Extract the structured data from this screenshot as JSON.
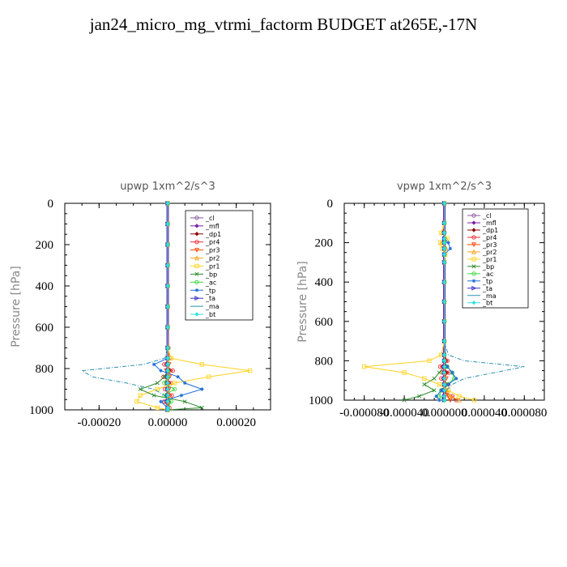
{
  "title": "jan24_micro_mg_vtrmi_factorm  BUDGET at265E,-17N",
  "chart_data": [
    {
      "type": "line",
      "title": "upwp   1xm^2/s^3",
      "xlabel": "",
      "ylabel": "Pressure [hPa]",
      "ylim": [
        0,
        1000
      ],
      "xlim": [
        -0.0003,
        0.0003
      ],
      "xticks": [
        -0.0002,
        0.0,
        0.0002
      ],
      "xtick_labels": [
        "-0.00020",
        "0.00000",
        "0.00020"
      ],
      "yticks": [
        0,
        200,
        400,
        600,
        800,
        1000
      ],
      "ytick_labels": [
        "0",
        "200",
        "400",
        "600",
        "800",
        "1000"
      ],
      "legend_position": "top-right",
      "y": [
        0,
        100,
        200,
        300,
        400,
        500,
        600,
        700,
        750,
        780,
        810,
        840,
        870,
        900,
        930,
        960,
        990,
        1000
      ],
      "series": [
        {
          "name": "_cl",
          "color": "#8a5aa0",
          "values": [
            0,
            0,
            0,
            0,
            0,
            0,
            0,
            0,
            0,
            0,
            0,
            0,
            0,
            0,
            0,
            0,
            0,
            0
          ]
        },
        {
          "name": "_mfl",
          "color": "#7b1fa2",
          "values": [
            0,
            0,
            0,
            0,
            0,
            0,
            0,
            0,
            0,
            0,
            0,
            0,
            0,
            0,
            0,
            0,
            0,
            0
          ]
        },
        {
          "name": "_dp1",
          "color": "#8b0000",
          "values": [
            0,
            0,
            0,
            0,
            0,
            0,
            0,
            0,
            0,
            0,
            5e-06,
            -5e-06,
            5e-06,
            0,
            -3e-06,
            4e-06,
            0,
            0
          ]
        },
        {
          "name": "_pr4",
          "color": "#e8282d",
          "values": [
            0,
            0,
            0,
            0,
            0,
            0,
            0,
            2e-06,
            5e-06,
            -1e-05,
            1.5e-05,
            -1.2e-05,
            1e-05,
            -8e-06,
            1.2e-05,
            -1e-05,
            5e-06,
            0
          ]
        },
        {
          "name": "_pr3",
          "color": "#ff4500",
          "values": [
            0,
            0,
            0,
            0,
            0,
            0,
            0,
            0,
            0,
            4e-06,
            -4e-06,
            6e-06,
            -5e-06,
            4e-06,
            0,
            0,
            0,
            0
          ]
        },
        {
          "name": "_pr2",
          "color": "#ff9f1c",
          "values": [
            0,
            0,
            0,
            0,
            0,
            0,
            0,
            0,
            2e-06,
            0,
            3e-06,
            0,
            -3e-06,
            0,
            2e-06,
            0,
            0,
            0
          ]
        },
        {
          "name": "_pr1",
          "color": "#ffd21f",
          "values": [
            0,
            0,
            0,
            0,
            0,
            0,
            0,
            0,
            1e-05,
            0.0001,
            0.00024,
            0.00012,
            2e-05,
            -3e-05,
            -8e-05,
            -9e-05,
            -3e-05,
            0
          ]
        },
        {
          "name": "_bp",
          "color": "#2e8b2e",
          "values": [
            0,
            0,
            0,
            0,
            0,
            0,
            0,
            0,
            0,
            0,
            0,
            -1e-05,
            -3e-05,
            -8e-05,
            -4e-05,
            5e-05,
            0.0001,
            0
          ]
        },
        {
          "name": "_ac",
          "color": "#3cd63c",
          "values": [
            0,
            0,
            0,
            0,
            0,
            0,
            0,
            0,
            0,
            0,
            0,
            0,
            -1e-05,
            2e-05,
            -1e-05,
            1e-05,
            0,
            0
          ]
        },
        {
          "name": "_tp",
          "color": "#1e70d8",
          "values": [
            0,
            0,
            0,
            0,
            0,
            0,
            0,
            0,
            0,
            -4e-05,
            -2e-05,
            3e-05,
            5e-05,
            0.0001,
            4e-05,
            -2e-05,
            0,
            0
          ]
        },
        {
          "name": "_ta",
          "color": "#3a30c8",
          "values": [
            0,
            0,
            0,
            0,
            0,
            0,
            0,
            0,
            0,
            0,
            0,
            0,
            0,
            0,
            0,
            0,
            0,
            0
          ]
        },
        {
          "name": "_ma",
          "color": "#2a8fb0",
          "values": [
            0,
            0,
            0,
            0,
            0,
            0,
            0,
            0,
            -1e-05,
            -7e-05,
            -0.00025,
            -0.00022,
            -0.00012,
            -4e-05,
            -1e-05,
            0,
            0,
            0
          ]
        },
        {
          "name": "_bt",
          "color": "#33e0e0",
          "values": [
            0,
            0,
            0,
            0,
            0,
            0,
            0,
            0,
            0,
            0,
            0,
            0,
            0,
            0,
            0,
            0,
            0,
            0
          ]
        }
      ]
    },
    {
      "type": "line",
      "title": "vpwp   1xm^2/s^3",
      "xlabel": "",
      "ylabel": "Pressure [hPa]",
      "ylim": [
        0,
        1000
      ],
      "xlim": [
        -0.0001,
        0.0001
      ],
      "xticks": [
        -8e-05,
        -4e-05,
        0.0,
        4e-05,
        8e-05
      ],
      "xtick_labels": [
        "-0.000080",
        "-0.000040",
        "0.000000",
        "0.000040",
        "0.000080"
      ],
      "yticks": [
        0,
        200,
        400,
        600,
        800,
        1000
      ],
      "ytick_labels": [
        "0",
        "200",
        "400",
        "600",
        "800",
        "1000"
      ],
      "legend_position": "top-right",
      "y": [
        0,
        100,
        150,
        180,
        200,
        230,
        260,
        300,
        400,
        500,
        600,
        700,
        770,
        800,
        830,
        860,
        890,
        920,
        950,
        980,
        1000
      ],
      "series": [
        {
          "name": "_cl",
          "color": "#8a5aa0",
          "values": [
            0,
            0,
            0,
            0,
            0,
            0,
            0,
            0,
            0,
            0,
            0,
            0,
            0,
            0,
            0,
            0,
            0,
            0,
            0,
            0,
            0
          ]
        },
        {
          "name": "_mfl",
          "color": "#7b1fa2",
          "values": [
            0,
            0,
            0,
            0,
            0,
            0,
            0,
            0,
            0,
            0,
            0,
            0,
            0,
            0,
            0,
            0,
            0,
            0,
            0,
            0,
            0
          ]
        },
        {
          "name": "_dp1",
          "color": "#8b0000",
          "values": [
            0,
            0,
            0,
            0,
            0,
            0,
            0,
            0,
            0,
            0,
            0,
            0,
            0,
            2e-06,
            -2e-06,
            2e-06,
            0,
            0,
            2e-06,
            0,
            0
          ]
        },
        {
          "name": "_pr4",
          "color": "#e8282d",
          "values": [
            0,
            0,
            0,
            0,
            0,
            0,
            0,
            0,
            0,
            0,
            0,
            0,
            0,
            3e-06,
            -4e-06,
            5e-06,
            -3e-06,
            4e-06,
            -2e-06,
            8e-06,
            1.2e-05
          ]
        },
        {
          "name": "_pr3",
          "color": "#ff4500",
          "values": [
            0,
            0,
            0,
            0,
            0,
            0,
            0,
            0,
            0,
            0,
            0,
            0,
            0,
            0,
            2e-06,
            -2e-06,
            2e-06,
            0,
            0,
            4e-06,
            6e-06
          ]
        },
        {
          "name": "_pr2",
          "color": "#ff9f1c",
          "values": [
            0,
            0,
            -2e-06,
            2e-06,
            -3e-06,
            2e-06,
            0,
            0,
            0,
            0,
            0,
            0,
            0,
            0,
            0,
            0,
            0,
            0,
            3e-06,
            6e-06,
            1.5e-05
          ]
        },
        {
          "name": "_pr1",
          "color": "#ffd21f",
          "values": [
            0,
            0,
            -3e-06,
            3e-06,
            -4e-06,
            -2e-06,
            1e-06,
            0,
            0,
            0,
            0,
            0,
            -3e-06,
            -1.5e-05,
            -8e-05,
            -4e-05,
            -2e-05,
            -5e-06,
            4e-06,
            1.5e-05,
            3e-05
          ]
        },
        {
          "name": "_bp",
          "color": "#2e8b2e",
          "values": [
            0,
            0,
            0,
            0,
            0,
            0,
            0,
            0,
            0,
            0,
            0,
            0,
            0,
            0,
            0,
            -5e-06,
            -1e-05,
            -2e-05,
            -1e-05,
            -2.5e-05,
            -4e-05
          ]
        },
        {
          "name": "_ac",
          "color": "#3cd63c",
          "values": [
            0,
            0,
            0,
            0,
            0,
            0,
            0,
            0,
            0,
            0,
            0,
            0,
            0,
            0,
            3e-06,
            8e-06,
            1e-05,
            3e-06,
            -3e-06,
            -5e-06,
            0
          ]
        },
        {
          "name": "_tp",
          "color": "#1e70d8",
          "values": [
            0,
            0,
            0,
            0,
            4e-06,
            6e-06,
            0,
            0,
            0,
            0,
            0,
            0,
            0,
            0,
            3e-06,
            8e-06,
            1.2e-05,
            4e-06,
            -3e-06,
            -8e-06,
            -5e-06
          ]
        },
        {
          "name": "_ta",
          "color": "#3a30c8",
          "values": [
            0,
            0,
            0,
            0,
            0,
            0,
            0,
            0,
            0,
            0,
            0,
            0,
            0,
            0,
            0,
            0,
            0,
            0,
            0,
            0,
            0
          ]
        },
        {
          "name": "_ma",
          "color": "#2a8fb0",
          "values": [
            0,
            0,
            0,
            0,
            0,
            0,
            0,
            0,
            0,
            0,
            0,
            0,
            4e-06,
            2e-05,
            8e-05,
            5e-05,
            2e-05,
            8e-06,
            2e-06,
            0,
            0
          ]
        },
        {
          "name": "_bt",
          "color": "#33e0e0",
          "values": [
            0,
            0,
            0,
            0,
            0,
            0,
            0,
            0,
            0,
            0,
            0,
            0,
            0,
            0,
            0,
            0,
            0,
            0,
            0,
            0,
            0
          ]
        }
      ]
    }
  ]
}
